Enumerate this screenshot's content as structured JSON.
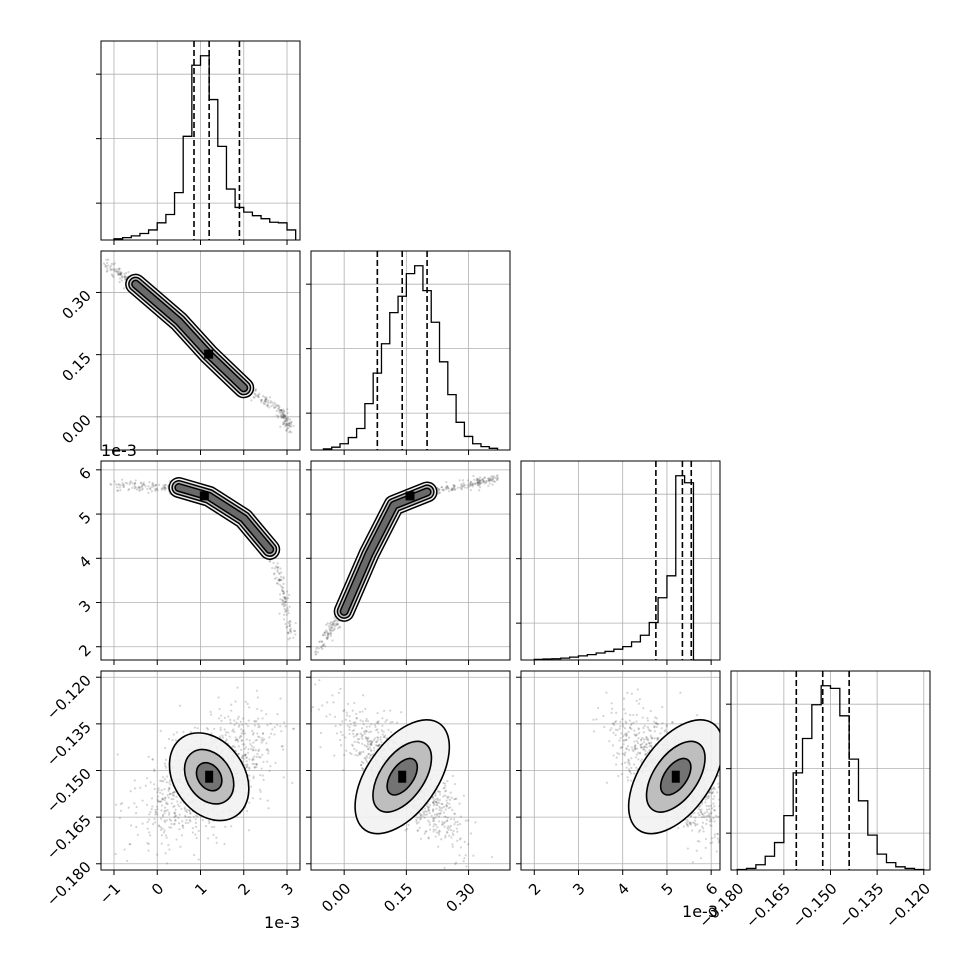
{
  "chart_data": {
    "type": "corner",
    "grid": true,
    "scientific_notation": {
      "param_0": "1e-3",
      "param_2": "1e-3"
    },
    "parameters": [
      {
        "range": [
          -1.3,
          3.3
        ],
        "ticks": [
          -1,
          0,
          1,
          2,
          3
        ],
        "tick_labels": [
          "−1",
          "0",
          "1",
          "2",
          "3"
        ],
        "quantiles": [
          0.85,
          1.2,
          1.9
        ]
      },
      {
        "range": [
          -0.08,
          0.4
        ],
        "ticks": [
          0.0,
          0.15,
          0.3
        ],
        "tick_labels": [
          "0.00",
          "0.15",
          "0.30"
        ],
        "quantiles": [
          0.08,
          0.14,
          0.2
        ]
      },
      {
        "range": [
          1.7,
          6.2
        ],
        "ticks": [
          2,
          3,
          4,
          5,
          6
        ],
        "tick_labels": [
          "2",
          "3",
          "4",
          "5",
          "6"
        ],
        "quantiles": [
          4.75,
          5.35,
          5.55
        ]
      },
      {
        "range": [
          -0.182,
          -0.118
        ],
        "ticks": [
          -0.18,
          -0.165,
          -0.15,
          -0.135,
          -0.12
        ],
        "tick_labels": [
          "−0.180",
          "−0.165",
          "−0.150",
          "−0.135",
          "−0.120"
        ],
        "quantiles": [
          -0.161,
          -0.1525,
          -0.144
        ]
      }
    ],
    "histograms": [
      {
        "param": 0,
        "bin_edges": [
          -1.0,
          -0.8,
          -0.6,
          -0.4,
          -0.2,
          0.0,
          0.2,
          0.4,
          0.6,
          0.8,
          1.0,
          1.2,
          1.4,
          1.6,
          1.8,
          2.0,
          2.2,
          2.4,
          2.6,
          2.8,
          3.0,
          3.2
        ],
        "counts": [
          2,
          4,
          7,
          11,
          17,
          29,
          43,
          80,
          175,
          295,
          311,
          237,
          158,
          86,
          55,
          47,
          41,
          36,
          30,
          29,
          17
        ]
      },
      {
        "param": 1,
        "bin_edges": [
          -0.05,
          -0.03,
          -0.01,
          0.01,
          0.03,
          0.05,
          0.07,
          0.09,
          0.11,
          0.13,
          0.15,
          0.17,
          0.19,
          0.21,
          0.23,
          0.25,
          0.27,
          0.29,
          0.31,
          0.33,
          0.35,
          0.37
        ],
        "counts": [
          2,
          5,
          11,
          22,
          38,
          82,
          136,
          188,
          243,
          272,
          312,
          326,
          282,
          226,
          156,
          98,
          49,
          24,
          11,
          6,
          3
        ]
      },
      {
        "param": 2,
        "bin_edges": [
          2.0,
          2.2,
          2.4,
          2.6,
          2.8,
          3.0,
          3.2,
          3.4,
          3.6,
          3.8,
          4.0,
          4.2,
          4.4,
          4.6,
          4.8,
          5.0,
          5.2,
          5.4,
          5.6,
          5.8,
          6.0
        ],
        "counts": [
          2,
          3,
          4,
          6,
          9,
          13,
          17,
          22,
          27,
          34,
          42,
          57,
          78,
          118,
          196,
          265,
          580,
          558,
          0,
          0
        ]
      },
      {
        "param": 3,
        "bin_edges": [
          -0.18,
          -0.177,
          -0.174,
          -0.171,
          -0.168,
          -0.165,
          -0.162,
          -0.159,
          -0.156,
          -0.153,
          -0.15,
          -0.147,
          -0.144,
          -0.141,
          -0.138,
          -0.135,
          -0.132,
          -0.129,
          -0.126,
          -0.123,
          -0.12
        ],
        "counts": [
          1,
          3,
          10,
          26,
          52,
          103,
          184,
          249,
          313,
          349,
          344,
          292,
          210,
          131,
          66,
          30,
          14,
          6,
          3,
          1
        ]
      }
    ],
    "scatter_panels": [
      {
        "x_param": 0,
        "y_param": 1,
        "shape": "curve",
        "center": [
          1.2,
          0.15
        ],
        "curve": [
          [
            -1.2,
            0.37
          ],
          [
            -0.5,
            0.32
          ],
          [
            0.5,
            0.23
          ],
          [
            1.2,
            0.15
          ],
          [
            2.0,
            0.07
          ],
          [
            2.8,
            0.02
          ],
          [
            3.1,
            -0.03
          ]
        ],
        "spread": 0.05
      },
      {
        "x_param": 0,
        "y_param": 2,
        "shape": "curve",
        "center": [
          1.1,
          5.4
        ],
        "curve": [
          [
            -1.1,
            5.65
          ],
          [
            0.5,
            5.6
          ],
          [
            1.2,
            5.4
          ],
          [
            2.0,
            4.9
          ],
          [
            2.6,
            4.2
          ],
          [
            2.9,
            3.3
          ],
          [
            3.1,
            2.2
          ]
        ],
        "spread": 0.05
      },
      {
        "x_param": 1,
        "y_param": 2,
        "shape": "curve",
        "center": [
          0.16,
          5.4
        ],
        "curve": [
          [
            -0.07,
            1.85
          ],
          [
            0.0,
            2.8
          ],
          [
            0.06,
            4.1
          ],
          [
            0.12,
            5.2
          ],
          [
            0.2,
            5.5
          ],
          [
            0.3,
            5.65
          ],
          [
            0.37,
            5.8
          ]
        ],
        "spread": 0.05
      },
      {
        "x_param": 0,
        "y_param": 3,
        "shape": "ellipse",
        "center": [
          1.2,
          -0.152
        ],
        "sd": [
          0.75,
          0.01
        ],
        "corr": 0.55
      },
      {
        "x_param": 1,
        "y_param": 3,
        "shape": "ellipse",
        "center": [
          0.14,
          -0.152
        ],
        "sd": [
          0.07,
          0.01
        ],
        "corr": -0.8
      },
      {
        "x_param": 2,
        "y_param": 3,
        "shape": "ellipse",
        "center": [
          5.2,
          -0.152
        ],
        "sd": [
          0.7,
          0.01
        ],
        "corr": -0.7
      }
    ]
  }
}
